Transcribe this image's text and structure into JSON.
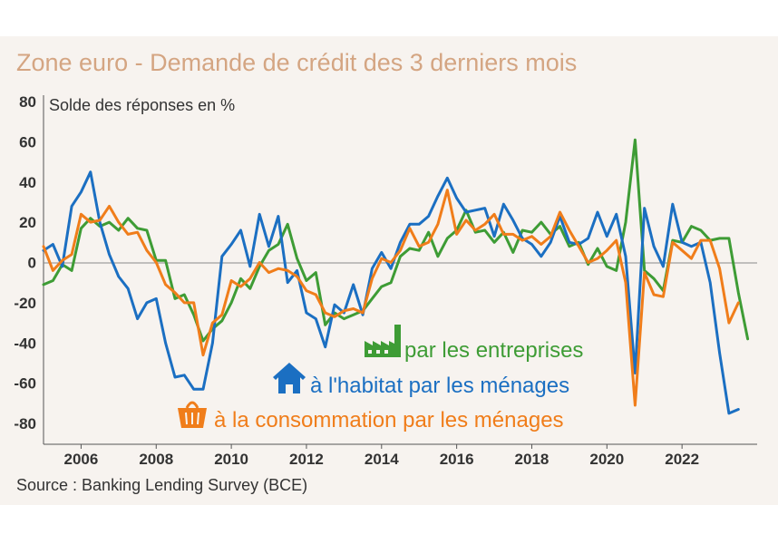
{
  "title": "Zone euro - Demande de crédit des 3 derniers mois",
  "source": "Source : Banking Lending Survey (BCE)",
  "colors": {
    "enterprises": "#3e9c35",
    "housing": "#1b6fc2",
    "consumption": "#f07d1a",
    "title": "#d4a582",
    "panel": "#f7f3ef"
  },
  "chart_data": {
    "type": "line",
    "title": "",
    "ylabel": "Solde des réponses en %",
    "xlabel": "",
    "xlim": [
      2005.0,
      2024.0
    ],
    "ylim": [
      -90,
      80
    ],
    "yticks": [
      -80,
      -60,
      -40,
      -20,
      0,
      20,
      40,
      60,
      80
    ],
    "xticks": [
      2006,
      2008,
      2010,
      2012,
      2014,
      2016,
      2018,
      2020,
      2022
    ],
    "grid": false,
    "legend_position": "center",
    "series": [
      {
        "name": "par les entreprises",
        "key": "enterprises",
        "icon": "factory-icon",
        "points": [
          [
            2005.0,
            -11
          ],
          [
            2005.25,
            -9
          ],
          [
            2005.5,
            -1
          ],
          [
            2005.75,
            -4
          ],
          [
            2006.0,
            17
          ],
          [
            2006.25,
            22
          ],
          [
            2006.5,
            18
          ],
          [
            2006.75,
            20
          ],
          [
            2007.0,
            16
          ],
          [
            2007.25,
            22
          ],
          [
            2007.5,
            17
          ],
          [
            2007.75,
            16
          ],
          [
            2008.0,
            1
          ],
          [
            2008.25,
            1
          ],
          [
            2008.5,
            -18
          ],
          [
            2008.75,
            -16
          ],
          [
            2009.0,
            -26
          ],
          [
            2009.25,
            -39
          ],
          [
            2009.5,
            -33
          ],
          [
            2009.75,
            -29
          ],
          [
            2010.0,
            -20
          ],
          [
            2010.25,
            -8
          ],
          [
            2010.5,
            -13
          ],
          [
            2010.75,
            -2
          ],
          [
            2011.0,
            6
          ],
          [
            2011.25,
            9
          ],
          [
            2011.5,
            19
          ],
          [
            2011.75,
            2
          ],
          [
            2012.0,
            -9
          ],
          [
            2012.25,
            -5
          ],
          [
            2012.5,
            -31
          ],
          [
            2012.75,
            -25
          ],
          [
            2013.0,
            -28
          ],
          [
            2013.25,
            -26
          ],
          [
            2013.5,
            -24
          ],
          [
            2013.75,
            -18
          ],
          [
            2014.0,
            -12
          ],
          [
            2014.25,
            -10
          ],
          [
            2014.5,
            3
          ],
          [
            2014.75,
            7
          ],
          [
            2015.0,
            6
          ],
          [
            2015.25,
            15
          ],
          [
            2015.5,
            3
          ],
          [
            2015.75,
            12
          ],
          [
            2016.0,
            16
          ],
          [
            2016.25,
            26
          ],
          [
            2016.5,
            15
          ],
          [
            2016.75,
            16
          ],
          [
            2017.0,
            10
          ],
          [
            2017.25,
            15
          ],
          [
            2017.5,
            5
          ],
          [
            2017.75,
            16
          ],
          [
            2018.0,
            15
          ],
          [
            2018.25,
            20
          ],
          [
            2018.5,
            14
          ],
          [
            2018.75,
            18
          ],
          [
            2019.0,
            8
          ],
          [
            2019.25,
            10
          ],
          [
            2019.5,
            -1
          ],
          [
            2019.75,
            7
          ],
          [
            2020.0,
            -2
          ],
          [
            2020.25,
            -4
          ],
          [
            2020.5,
            20
          ],
          [
            2020.75,
            61
          ],
          [
            2021.0,
            -4
          ],
          [
            2021.25,
            -8
          ],
          [
            2021.5,
            -14
          ],
          [
            2021.75,
            11
          ],
          [
            2022.0,
            10
          ],
          [
            2022.25,
            18
          ],
          [
            2022.5,
            16
          ],
          [
            2022.75,
            11
          ],
          [
            2023.0,
            12
          ],
          [
            2023.25,
            12
          ],
          [
            2023.5,
            -15
          ],
          [
            2023.75,
            -38
          ]
        ]
      },
      {
        "name": "à l'habitat par les ménages",
        "key": "housing",
        "icon": "house-icon",
        "points": [
          [
            2005.0,
            6
          ],
          [
            2005.25,
            9
          ],
          [
            2005.5,
            -2
          ],
          [
            2005.75,
            28
          ],
          [
            2006.0,
            35
          ],
          [
            2006.25,
            45
          ],
          [
            2006.5,
            20
          ],
          [
            2006.75,
            4
          ],
          [
            2007.0,
            -7
          ],
          [
            2007.25,
            -13
          ],
          [
            2007.5,
            -28
          ],
          [
            2007.75,
            -20
          ],
          [
            2008.0,
            -18
          ],
          [
            2008.25,
            -40
          ],
          [
            2008.5,
            -57
          ],
          [
            2008.75,
            -56
          ],
          [
            2009.0,
            -63
          ],
          [
            2009.25,
            -63
          ],
          [
            2009.5,
            -40
          ],
          [
            2009.75,
            3
          ],
          [
            2010.0,
            9
          ],
          [
            2010.25,
            16
          ],
          [
            2010.5,
            -2
          ],
          [
            2010.75,
            24
          ],
          [
            2011.0,
            8
          ],
          [
            2011.25,
            23
          ],
          [
            2011.5,
            -10
          ],
          [
            2011.75,
            -4
          ],
          [
            2012.0,
            -25
          ],
          [
            2012.25,
            -28
          ],
          [
            2012.5,
            -42
          ],
          [
            2012.75,
            -21
          ],
          [
            2013.0,
            -25
          ],
          [
            2013.25,
            -11
          ],
          [
            2013.5,
            -26
          ],
          [
            2013.75,
            -3
          ],
          [
            2014.0,
            5
          ],
          [
            2014.25,
            -3
          ],
          [
            2014.5,
            10
          ],
          [
            2014.75,
            19
          ],
          [
            2015.0,
            19
          ],
          [
            2015.25,
            23
          ],
          [
            2015.5,
            33
          ],
          [
            2015.75,
            42
          ],
          [
            2016.0,
            32
          ],
          [
            2016.25,
            25
          ],
          [
            2016.5,
            26
          ],
          [
            2016.75,
            27
          ],
          [
            2017.0,
            13
          ],
          [
            2017.25,
            29
          ],
          [
            2017.5,
            21
          ],
          [
            2017.75,
            12
          ],
          [
            2018.0,
            9
          ],
          [
            2018.25,
            3
          ],
          [
            2018.5,
            10
          ],
          [
            2018.75,
            23
          ],
          [
            2019.0,
            10
          ],
          [
            2019.25,
            9
          ],
          [
            2019.5,
            12
          ],
          [
            2019.75,
            25
          ],
          [
            2020.0,
            13
          ],
          [
            2020.25,
            24
          ],
          [
            2020.5,
            3
          ],
          [
            2020.75,
            -55
          ],
          [
            2021.0,
            27
          ],
          [
            2021.25,
            8
          ],
          [
            2021.5,
            -2
          ],
          [
            2021.75,
            29
          ],
          [
            2022.0,
            10
          ],
          [
            2022.25,
            8
          ],
          [
            2022.5,
            10
          ],
          [
            2022.75,
            -10
          ],
          [
            2023.0,
            -45
          ],
          [
            2023.25,
            -75
          ],
          [
            2023.5,
            -73
          ]
        ]
      },
      {
        "name": "à la consommation par les ménages",
        "key": "consumption",
        "icon": "shopping-basket-icon",
        "points": [
          [
            2005.0,
            8
          ],
          [
            2005.25,
            -4
          ],
          [
            2005.5,
            1
          ],
          [
            2005.75,
            4
          ],
          [
            2006.0,
            24
          ],
          [
            2006.25,
            20
          ],
          [
            2006.5,
            21
          ],
          [
            2006.75,
            28
          ],
          [
            2007.0,
            20
          ],
          [
            2007.25,
            14
          ],
          [
            2007.5,
            15
          ],
          [
            2007.75,
            6
          ],
          [
            2008.0,
            0
          ],
          [
            2008.25,
            -11
          ],
          [
            2008.5,
            -15
          ],
          [
            2008.75,
            -20
          ],
          [
            2009.0,
            -20
          ],
          [
            2009.25,
            -46
          ],
          [
            2009.5,
            -30
          ],
          [
            2009.75,
            -26
          ],
          [
            2010.0,
            -9
          ],
          [
            2010.25,
            -12
          ],
          [
            2010.5,
            -8
          ],
          [
            2010.75,
            0
          ],
          [
            2011.0,
            -5
          ],
          [
            2011.25,
            -3
          ],
          [
            2011.5,
            -4
          ],
          [
            2011.75,
            -7
          ],
          [
            2012.0,
            -14
          ],
          [
            2012.25,
            -16
          ],
          [
            2012.5,
            -25
          ],
          [
            2012.75,
            -27
          ],
          [
            2013.0,
            -24
          ],
          [
            2013.25,
            -23
          ],
          [
            2013.5,
            -25
          ],
          [
            2013.75,
            -8
          ],
          [
            2014.0,
            2
          ],
          [
            2014.25,
            0
          ],
          [
            2014.5,
            6
          ],
          [
            2014.75,
            17
          ],
          [
            2015.0,
            8
          ],
          [
            2015.25,
            10
          ],
          [
            2015.5,
            19
          ],
          [
            2015.75,
            36
          ],
          [
            2016.0,
            14
          ],
          [
            2016.25,
            21
          ],
          [
            2016.5,
            16
          ],
          [
            2016.75,
            19
          ],
          [
            2017.0,
            24
          ],
          [
            2017.25,
            14
          ],
          [
            2017.5,
            14
          ],
          [
            2017.75,
            11
          ],
          [
            2018.0,
            13
          ],
          [
            2018.25,
            9
          ],
          [
            2018.5,
            13
          ],
          [
            2018.75,
            25
          ],
          [
            2019.0,
            16
          ],
          [
            2019.25,
            8
          ],
          [
            2019.5,
            0
          ],
          [
            2019.75,
            2
          ],
          [
            2020.0,
            6
          ],
          [
            2020.25,
            11
          ],
          [
            2020.5,
            -10
          ],
          [
            2020.75,
            -71
          ],
          [
            2021.0,
            -5
          ],
          [
            2021.25,
            -16
          ],
          [
            2021.5,
            -17
          ],
          [
            2021.75,
            10
          ],
          [
            2022.0,
            6
          ],
          [
            2022.25,
            2
          ],
          [
            2022.5,
            11
          ],
          [
            2022.75,
            11
          ],
          [
            2023.0,
            -3
          ],
          [
            2023.25,
            -30
          ],
          [
            2023.5,
            -20
          ]
        ]
      }
    ]
  }
}
